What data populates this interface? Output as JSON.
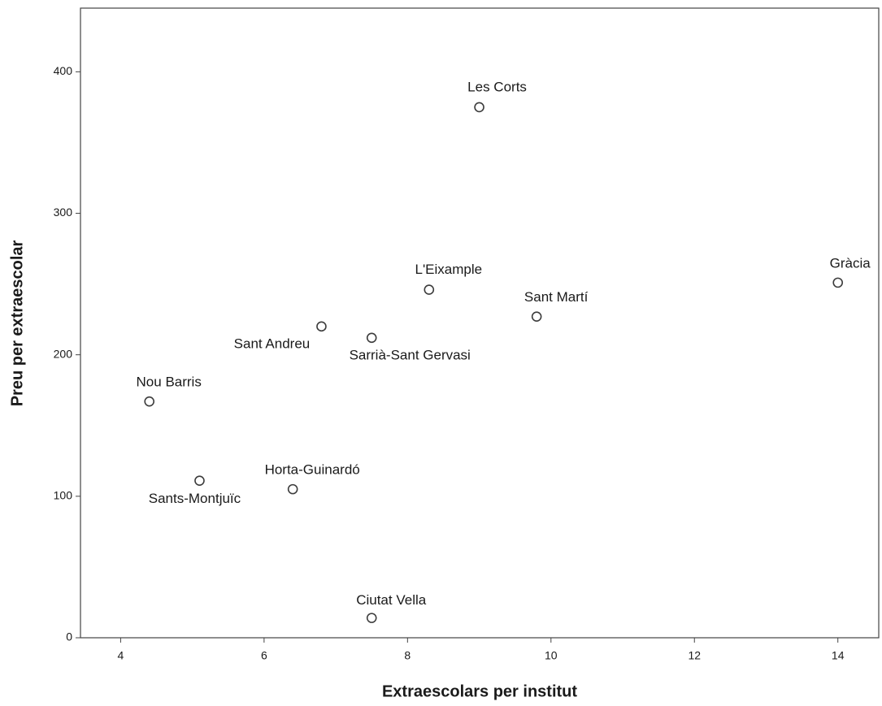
{
  "chart_data": {
    "type": "scatter",
    "x_label": "Extraescolars per institut",
    "y_label": "Preu per extraescolar",
    "labels": [
      "Les Corts",
      "L'Eixample",
      "Gràcia",
      "Sant Martí",
      "Sant Andreu",
      "Sarrià-Sant Gervasi",
      "Nou Barris",
      "Sants-Montjuïc",
      "Horta-Guinardó",
      "Ciutat Vella"
    ],
    "x": [
      9.0,
      8.3,
      14.0,
      9.8,
      6.8,
      7.5,
      4.4,
      5.1,
      6.4,
      7.5
    ],
    "values": [
      375,
      246,
      251,
      227,
      220,
      212,
      167,
      111,
      105,
      14
    ],
    "color": "#3c3c3c",
    "xlim": [
      3.44,
      14.57
    ],
    "xticks": [
      4,
      6,
      8,
      10,
      12,
      14
    ],
    "ylim": [
      0,
      445
    ],
    "yticks": [
      0,
      100,
      200,
      300,
      400
    ],
    "grid": false
  }
}
